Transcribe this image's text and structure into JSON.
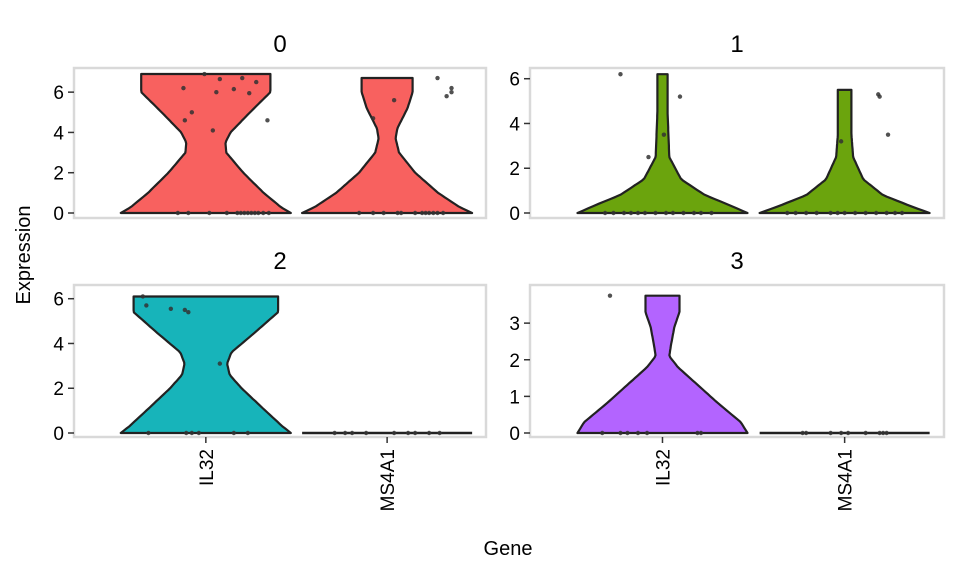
{
  "chart_data": {
    "type": "violin",
    "xlabel": "Gene",
    "ylabel": "Expression",
    "categories": [
      "IL32",
      "MS4A1"
    ],
    "colors": {
      "0": "#F8615F",
      "1": "#6BA40D",
      "2": "#17B4BA",
      "3": "#B364FF",
      "outline": "#222222",
      "points": "#333333",
      "frame": "#D9D9D9"
    },
    "panels": [
      {
        "title": "0",
        "ylim": [
          0,
          7
        ],
        "yticks": [
          0,
          2,
          4,
          6
        ],
        "violins": [
          {
            "gene": "IL32",
            "max": 6.9,
            "profile": [
              [
                0,
                1
              ],
              [
                0.3,
                0.88
              ],
              [
                1,
                0.68
              ],
              [
                2,
                0.44
              ],
              [
                3,
                0.24
              ],
              [
                3.5,
                0.23
              ],
              [
                4,
                0.29
              ],
              [
                5,
                0.52
              ],
              [
                6,
                0.76
              ],
              [
                6.9,
                0.76
              ]
            ],
            "points": [
              [
                0,
                -0.4
              ],
              [
                0,
                -0.25
              ],
              [
                0,
                0.05
              ],
              [
                0,
                0.3
              ],
              [
                0,
                0.45
              ],
              [
                0,
                0.5
              ],
              [
                0,
                0.55
              ],
              [
                0,
                0.6
              ],
              [
                0,
                0.65
              ],
              [
                0,
                0.7
              ],
              [
                0,
                0.75
              ],
              [
                0,
                0.82
              ],
              [
                0,
                0.9
              ],
              [
                6.2,
                -0.32
              ],
              [
                4.6,
                -0.3
              ],
              [
                5.0,
                -0.2
              ],
              [
                6.9,
                -0.02
              ],
              [
                6.0,
                0.15
              ],
              [
                6.65,
                0.2
              ],
              [
                4.1,
                0.1
              ],
              [
                6.15,
                0.4
              ],
              [
                6.7,
                0.52
              ],
              [
                5.95,
                0.62
              ],
              [
                6.5,
                0.72
              ],
              [
                4.6,
                0.88
              ]
            ]
          },
          {
            "gene": "MS4A1",
            "max": 6.7,
            "profile": [
              [
                0,
                1
              ],
              [
                0.3,
                0.85
              ],
              [
                1,
                0.6
              ],
              [
                2,
                0.33
              ],
              [
                3,
                0.14
              ],
              [
                3.7,
                0.1
              ],
              [
                4.2,
                0.12
              ],
              [
                5.2,
                0.24
              ],
              [
                6,
                0.3
              ],
              [
                6.7,
                0.3
              ]
            ],
            "points": [
              [
                0,
                -0.4
              ],
              [
                0,
                -0.2
              ],
              [
                0,
                -0.05
              ],
              [
                0,
                0.15
              ],
              [
                0,
                0.2
              ],
              [
                0,
                0.4
              ],
              [
                0,
                0.5
              ],
              [
                0,
                0.55
              ],
              [
                0,
                0.6
              ],
              [
                0,
                0.66
              ],
              [
                0,
                0.72
              ],
              [
                0,
                0.8
              ],
              [
                4.7,
                -0.2
              ],
              [
                5.6,
                0.1
              ],
              [
                6.7,
                0.72
              ],
              [
                5.8,
                0.85
              ],
              [
                6.0,
                0.92
              ],
              [
                6.2,
                0.92
              ]
            ]
          }
        ]
      },
      {
        "title": "1",
        "ylim": [
          0,
          6.3
        ],
        "yticks": [
          0,
          2,
          4,
          6
        ],
        "violins": [
          {
            "gene": "IL32",
            "max": 6.2,
            "profile": [
              [
                0,
                1
              ],
              [
                0.3,
                0.82
              ],
              [
                0.8,
                0.5
              ],
              [
                1.5,
                0.22
              ],
              [
                2.5,
                0.08
              ],
              [
                3.5,
                0.07
              ],
              [
                4.5,
                0.06
              ],
              [
                6.2,
                0.06
              ]
            ],
            "points": [
              [
                0,
                -0.82
              ],
              [
                0,
                -0.7
              ],
              [
                0,
                -0.55
              ],
              [
                0,
                -0.45
              ],
              [
                0,
                -0.35
              ],
              [
                0,
                -0.25
              ],
              [
                0,
                -0.1
              ],
              [
                0,
                0.05
              ],
              [
                0,
                0.15
              ],
              [
                0,
                0.3
              ],
              [
                0,
                0.45
              ],
              [
                0,
                0.55
              ],
              [
                0,
                0.7
              ],
              [
                6.2,
                -0.6
              ],
              [
                2.5,
                -0.2
              ],
              [
                3.5,
                0.02
              ],
              [
                5.2,
                0.25
              ]
            ]
          },
          {
            "gene": "MS4A1",
            "max": 5.5,
            "profile": [
              [
                0,
                1
              ],
              [
                0.3,
                0.78
              ],
              [
                0.8,
                0.45
              ],
              [
                1.5,
                0.22
              ],
              [
                2.5,
                0.1
              ],
              [
                3.5,
                0.08
              ],
              [
                4.5,
                0.08
              ],
              [
                5.5,
                0.08
              ]
            ],
            "points": [
              [
                0,
                -0.82
              ],
              [
                0,
                -0.7
              ],
              [
                0,
                -0.55
              ],
              [
                0,
                -0.4
              ],
              [
                0,
                -0.2
              ],
              [
                0,
                -0.1
              ],
              [
                0,
                0.0
              ],
              [
                0,
                0.15
              ],
              [
                0,
                0.3
              ],
              [
                0,
                0.45
              ],
              [
                0,
                0.6
              ],
              [
                0,
                0.72
              ],
              [
                0,
                0.82
              ],
              [
                3.2,
                -0.05
              ],
              [
                5.3,
                0.48
              ],
              [
                5.2,
                0.5
              ],
              [
                3.5,
                0.62
              ]
            ]
          }
        ]
      },
      {
        "title": "2",
        "ylim": [
          0,
          6.3
        ],
        "yticks": [
          0,
          2,
          4,
          6
        ],
        "violins": [
          {
            "gene": "IL32",
            "max": 6.1,
            "profile": [
              [
                0,
                1
              ],
              [
                0.3,
                0.9
              ],
              [
                1,
                0.7
              ],
              [
                2,
                0.42
              ],
              [
                2.6,
                0.28
              ],
              [
                3.1,
                0.25
              ],
              [
                3.6,
                0.3
              ],
              [
                4.5,
                0.58
              ],
              [
                5.4,
                0.85
              ],
              [
                6.1,
                0.85
              ]
            ],
            "points": [
              [
                0,
                -0.82
              ],
              [
                0,
                -0.28
              ],
              [
                0,
                -0.2
              ],
              [
                0,
                -0.1
              ],
              [
                0,
                0.4
              ],
              [
                0,
                0.6
              ],
              [
                6.1,
                -0.9
              ],
              [
                5.7,
                -0.85
              ],
              [
                5.55,
                -0.5
              ],
              [
                5.5,
                -0.3
              ],
              [
                5.4,
                -0.25
              ],
              [
                3.1,
                0.2
              ]
            ]
          },
          {
            "gene": "MS4A1",
            "max": 0,
            "profile": [
              [
                0,
                1
              ]
            ],
            "points": [
              [
                0,
                -0.75
              ],
              [
                0,
                -0.6
              ],
              [
                0,
                -0.5
              ],
              [
                0,
                -0.3
              ],
              [
                0,
                0.1
              ],
              [
                0,
                0.3
              ],
              [
                0,
                0.4
              ],
              [
                0,
                0.6
              ],
              [
                0,
                0.75
              ]
            ]
          }
        ]
      },
      {
        "title": "3",
        "ylim": [
          0,
          3.85
        ],
        "yticks": [
          0,
          1,
          2,
          3
        ],
        "violins": [
          {
            "gene": "IL32",
            "max": 3.75,
            "profile": [
              [
                0,
                1
              ],
              [
                0.3,
                0.92
              ],
              [
                0.8,
                0.66
              ],
              [
                1.3,
                0.42
              ],
              [
                1.8,
                0.18
              ],
              [
                2.1,
                0.08
              ],
              [
                2.4,
                0.1
              ],
              [
                2.9,
                0.14
              ],
              [
                3.3,
                0.2
              ],
              [
                3.75,
                0.2
              ]
            ],
            "points": [
              [
                0,
                -0.86
              ],
              [
                0,
                -0.6
              ],
              [
                0,
                -0.5
              ],
              [
                0,
                -0.35
              ],
              [
                0,
                -0.22
              ],
              [
                0,
                0.5
              ],
              [
                0,
                0.55
              ],
              [
                3.75,
                -0.75
              ]
            ]
          },
          {
            "gene": "MS4A1",
            "max": 0,
            "profile": [
              [
                0,
                1
              ]
            ],
            "points": [
              [
                0,
                -0.6
              ],
              [
                0,
                -0.55
              ],
              [
                0,
                -0.2
              ],
              [
                0,
                -0.05
              ],
              [
                0,
                0.05
              ],
              [
                0,
                0.3
              ],
              [
                0,
                0.5
              ],
              [
                0,
                0.55
              ],
              [
                0,
                0.6
              ]
            ]
          }
        ]
      }
    ]
  }
}
